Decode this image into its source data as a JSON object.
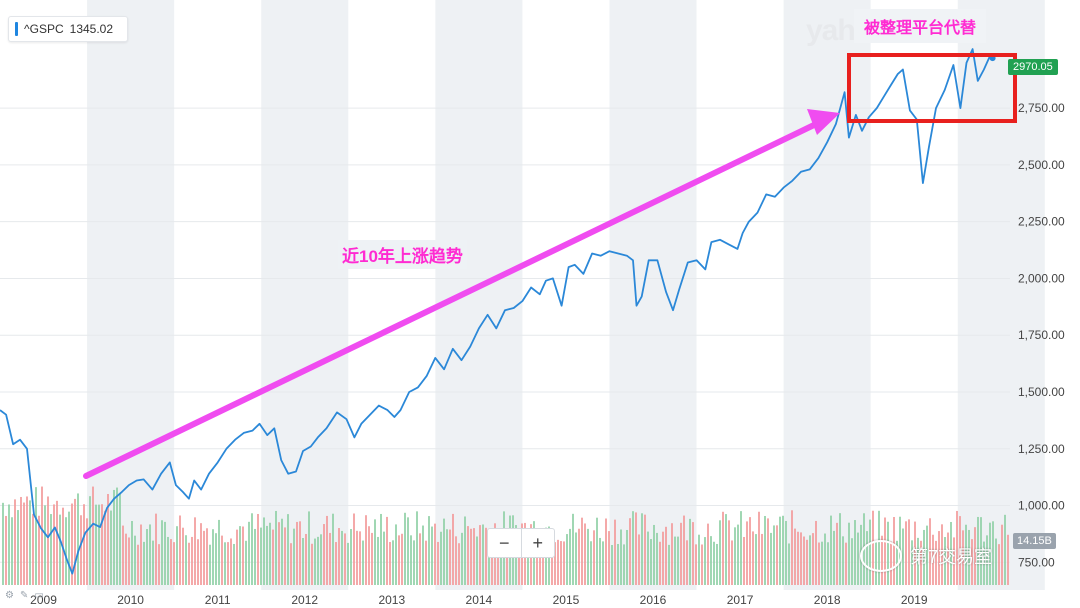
{
  "ticker": {
    "symbol": "^GSPC",
    "value": "1345.02"
  },
  "last_price": "2970.05",
  "volume_label": "14.15B",
  "zoom": {
    "minus": "−",
    "plus": "+"
  },
  "watermark_brand": "yahoo",
  "annotations": {
    "trend": "近10年上涨趋势",
    "box": "被整理平台代替",
    "wechat": "第7交易室"
  },
  "colors": {
    "line": "#2b88d8",
    "arrow": "#f04cf0",
    "box": "#e8201e",
    "vol_up": "#8fd0a6",
    "vol_down": "#f29a9a",
    "band": "#eef1f4"
  },
  "chart_data": {
    "type": "line",
    "title": "",
    "xlabel": "",
    "ylabel": "",
    "x_ticks": [
      "2009",
      "2010",
      "2011",
      "2012",
      "2013",
      "2014",
      "2015",
      "2016",
      "2017",
      "2018",
      "2019"
    ],
    "y_ticks": [
      "750.00",
      "1,000.00",
      "1,250.00",
      "1,500.00",
      "1,750.00",
      "2,000.00",
      "2,250.00",
      "2,500.00",
      "2,750.00"
    ],
    "ylim": [
      650,
      3050
    ],
    "xlim": [
      2008.35,
      2019.95
    ],
    "series": [
      {
        "values": [
          [
            2008.35,
            1420
          ],
          [
            2008.42,
            1400
          ],
          [
            2008.5,
            1270
          ],
          [
            2008.58,
            1290
          ],
          [
            2008.66,
            1250
          ],
          [
            2008.74,
            960
          ],
          [
            2008.82,
            900
          ],
          [
            2008.9,
            860
          ],
          [
            2008.98,
            903
          ],
          [
            2009.05,
            840
          ],
          [
            2009.12,
            760
          ],
          [
            2009.18,
            700
          ],
          [
            2009.25,
            800
          ],
          [
            2009.33,
            880
          ],
          [
            2009.42,
            920
          ],
          [
            2009.5,
            905
          ],
          [
            2009.58,
            990
          ],
          [
            2009.66,
            1030
          ],
          [
            2009.75,
            1060
          ],
          [
            2009.83,
            1090
          ],
          [
            2009.92,
            1110
          ],
          [
            2010.0,
            1115
          ],
          [
            2010.1,
            1070
          ],
          [
            2010.2,
            1140
          ],
          [
            2010.3,
            1190
          ],
          [
            2010.37,
            1090
          ],
          [
            2010.45,
            1060
          ],
          [
            2010.52,
            1030
          ],
          [
            2010.58,
            1110
          ],
          [
            2010.66,
            1070
          ],
          [
            2010.75,
            1140
          ],
          [
            2010.85,
            1190
          ],
          [
            2010.95,
            1250
          ],
          [
            2011.05,
            1290
          ],
          [
            2011.15,
            1320
          ],
          [
            2011.25,
            1330
          ],
          [
            2011.33,
            1360
          ],
          [
            2011.42,
            1310
          ],
          [
            2011.5,
            1340
          ],
          [
            2011.58,
            1200
          ],
          [
            2011.66,
            1140
          ],
          [
            2011.75,
            1150
          ],
          [
            2011.83,
            1240
          ],
          [
            2011.92,
            1260
          ],
          [
            2012.0,
            1300
          ],
          [
            2012.1,
            1340
          ],
          [
            2012.22,
            1410
          ],
          [
            2012.33,
            1380
          ],
          [
            2012.42,
            1300
          ],
          [
            2012.5,
            1360
          ],
          [
            2012.6,
            1400
          ],
          [
            2012.7,
            1440
          ],
          [
            2012.8,
            1420
          ],
          [
            2012.88,
            1390
          ],
          [
            2012.95,
            1420
          ],
          [
            2013.05,
            1500
          ],
          [
            2013.15,
            1520
          ],
          [
            2013.25,
            1570
          ],
          [
            2013.35,
            1650
          ],
          [
            2013.45,
            1600
          ],
          [
            2013.55,
            1690
          ],
          [
            2013.65,
            1640
          ],
          [
            2013.75,
            1700
          ],
          [
            2013.85,
            1780
          ],
          [
            2013.95,
            1840
          ],
          [
            2014.05,
            1780
          ],
          [
            2014.15,
            1860
          ],
          [
            2014.25,
            1870
          ],
          [
            2014.35,
            1900
          ],
          [
            2014.45,
            1960
          ],
          [
            2014.55,
            1930
          ],
          [
            2014.62,
            1990
          ],
          [
            2014.7,
            2000
          ],
          [
            2014.8,
            1880
          ],
          [
            2014.88,
            2050
          ],
          [
            2014.95,
            2060
          ],
          [
            2015.05,
            2020
          ],
          [
            2015.15,
            2110
          ],
          [
            2015.25,
            2100
          ],
          [
            2015.35,
            2120
          ],
          [
            2015.45,
            2110
          ],
          [
            2015.55,
            2100
          ],
          [
            2015.62,
            2080
          ],
          [
            2015.66,
            1880
          ],
          [
            2015.72,
            1920
          ],
          [
            2015.8,
            2080
          ],
          [
            2015.9,
            2080
          ],
          [
            2016.0,
            1940
          ],
          [
            2016.08,
            1860
          ],
          [
            2016.15,
            1950
          ],
          [
            2016.25,
            2070
          ],
          [
            2016.35,
            2080
          ],
          [
            2016.45,
            2040
          ],
          [
            2016.52,
            2160
          ],
          [
            2016.62,
            2170
          ],
          [
            2016.72,
            2150
          ],
          [
            2016.82,
            2130
          ],
          [
            2016.88,
            2200
          ],
          [
            2016.95,
            2250
          ],
          [
            2017.05,
            2290
          ],
          [
            2017.15,
            2370
          ],
          [
            2017.25,
            2360
          ],
          [
            2017.35,
            2400
          ],
          [
            2017.45,
            2430
          ],
          [
            2017.55,
            2470
          ],
          [
            2017.65,
            2480
          ],
          [
            2017.75,
            2530
          ],
          [
            2017.85,
            2600
          ],
          [
            2017.95,
            2680
          ],
          [
            2018.05,
            2820
          ],
          [
            2018.1,
            2620
          ],
          [
            2018.18,
            2720
          ],
          [
            2018.25,
            2650
          ],
          [
            2018.33,
            2710
          ],
          [
            2018.42,
            2750
          ],
          [
            2018.5,
            2800
          ],
          [
            2018.58,
            2850
          ],
          [
            2018.66,
            2900
          ],
          [
            2018.72,
            2920
          ],
          [
            2018.8,
            2740
          ],
          [
            2018.88,
            2700
          ],
          [
            2018.95,
            2420
          ],
          [
            2019.02,
            2580
          ],
          [
            2019.1,
            2750
          ],
          [
            2019.2,
            2830
          ],
          [
            2019.3,
            2940
          ],
          [
            2019.38,
            2750
          ],
          [
            2019.45,
            2950
          ],
          [
            2019.52,
            3010
          ],
          [
            2019.58,
            2870
          ],
          [
            2019.65,
            2920
          ],
          [
            2019.72,
            2980
          ],
          [
            2019.75,
            2970
          ]
        ]
      }
    ]
  }
}
